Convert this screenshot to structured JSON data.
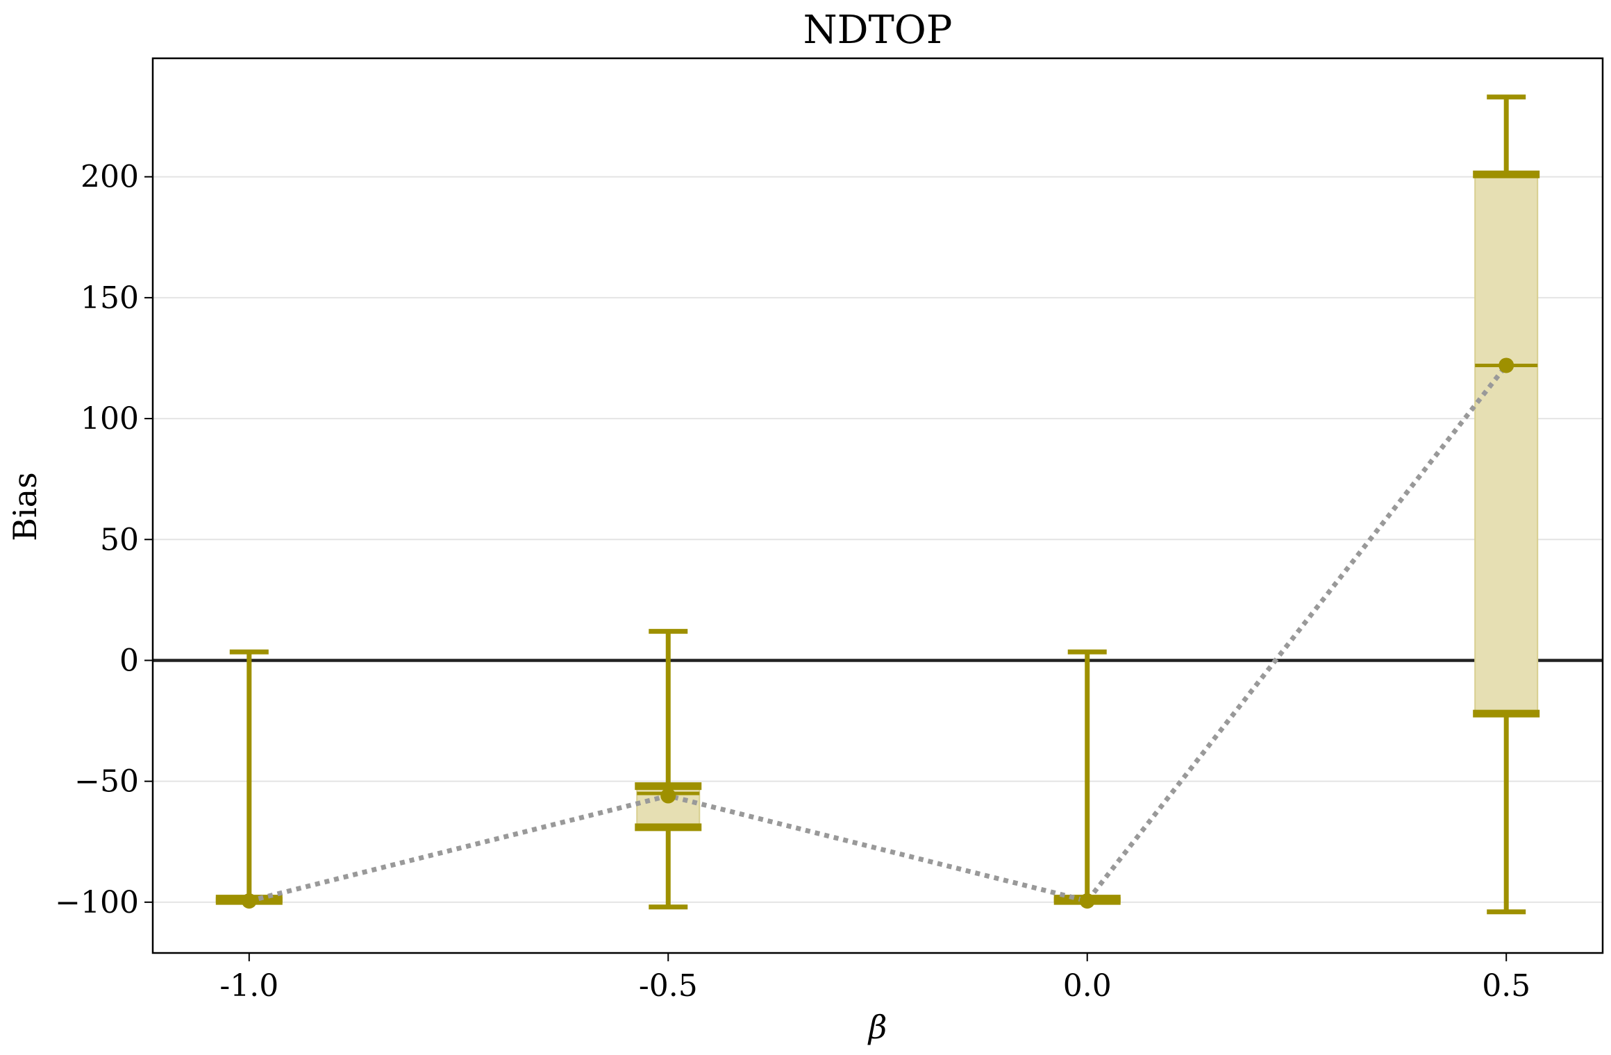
{
  "chart_data": {
    "type": "box",
    "title": "NDTOP",
    "xlabel": "β",
    "ylabel": "Bias",
    "categories": [
      "-1.0",
      "-0.5",
      "0.0",
      "0.5"
    ],
    "x": [
      -1.0,
      -0.5,
      0.0,
      0.5
    ],
    "xlim": [
      -1.115,
      0.615
    ],
    "ylim": [
      -121,
      249
    ],
    "yticks": [
      -100,
      -50,
      0,
      50,
      100,
      150,
      200
    ],
    "ytick_labels": [
      "−100",
      "−50",
      "0",
      "50",
      "100",
      "150",
      "200"
    ],
    "grid": "y-major, light",
    "reference_line": 0,
    "series": [
      {
        "boxes": [
          {
            "x": -1.0,
            "whisker_low": -99.5,
            "q1": -99.5,
            "median": -99.5,
            "mean": -99.5,
            "q3": -98.5,
            "whisker_high": 3.5
          },
          {
            "x": -0.5,
            "whisker_low": -102,
            "q1": -69,
            "median": -55,
            "mean": -56,
            "q3": -52,
            "whisker_high": 12
          },
          {
            "x": 0.0,
            "whisker_low": -99.5,
            "q1": -99.5,
            "median": -99.5,
            "mean": -99.5,
            "q3": -98.5,
            "whisker_high": 3.5
          },
          {
            "x": 0.5,
            "whisker_low": -104,
            "q1": -22,
            "median": 122,
            "mean": 122,
            "q3": 201,
            "whisker_high": 233
          }
        ]
      }
    ],
    "colors": {
      "box_line": "#9e9000",
      "box_fill": "#e6dfb3",
      "mean_line": "#999999",
      "zero_line": "#222222",
      "grid": "#e4e4e4"
    }
  }
}
